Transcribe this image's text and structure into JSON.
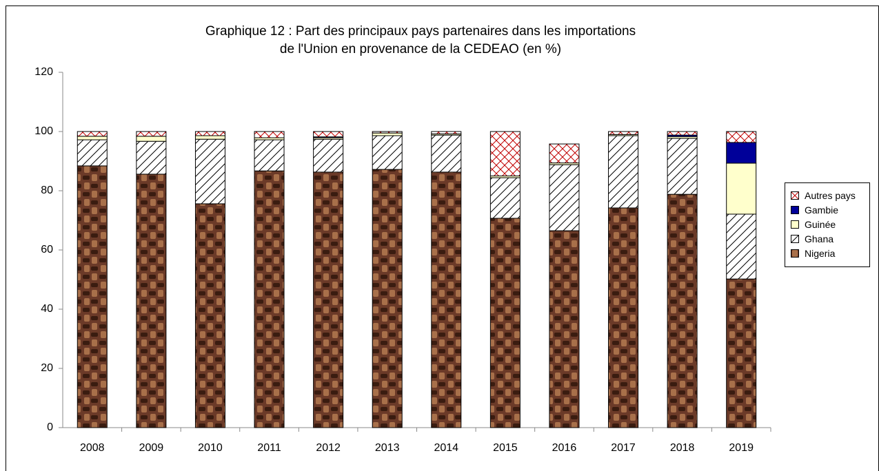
{
  "chart_data": {
    "type": "stacked_bar",
    "title": "Graphique 12 : Part des principaux pays partenaires dans les importations de l'Union en provenance de la CEDEAO (en %)",
    "categories": [
      "2008",
      "2009",
      "2010",
      "2011",
      "2012",
      "2013",
      "2014",
      "2015",
      "2016",
      "2017",
      "2018",
      "2019"
    ],
    "series": [
      {
        "name": "Nigeria",
        "color": "#6b3a28",
        "values": [
          88.4,
          85.6,
          75.6,
          86.7,
          86.3,
          87.2,
          86.3,
          70.7,
          66.5,
          74.2,
          78.8,
          50.2
        ]
      },
      {
        "name": "Ghana",
        "color": "#ffffff",
        "values": [
          8.8,
          11.1,
          21.8,
          10.5,
          11.1,
          11.4,
          12.5,
          13.7,
          22.3,
          24.4,
          18.9,
          21.9
        ]
      },
      {
        "name": "Guinée",
        "color": "#ffffcc",
        "values": [
          1.2,
          1.7,
          1.2,
          0.7,
          0.5,
          0.9,
          0.4,
          0.6,
          0.6,
          0.4,
          0.6,
          17.2
        ]
      },
      {
        "name": "Gambie",
        "color": "#000099",
        "values": [
          0,
          0,
          0,
          0,
          0.3,
          0,
          0,
          0,
          0,
          0,
          0.5,
          7.0
        ]
      },
      {
        "name": "Autres pays",
        "color": "#c00000",
        "values": [
          1.6,
          1.6,
          1.4,
          2.1,
          1.8,
          0.5,
          0.8,
          15.0,
          6.4,
          1.0,
          1.2,
          3.7
        ]
      }
    ],
    "ylim": [
      0,
      120
    ],
    "yticks": [
      0,
      20,
      40,
      60,
      80,
      100,
      120
    ],
    "legend": "right"
  }
}
